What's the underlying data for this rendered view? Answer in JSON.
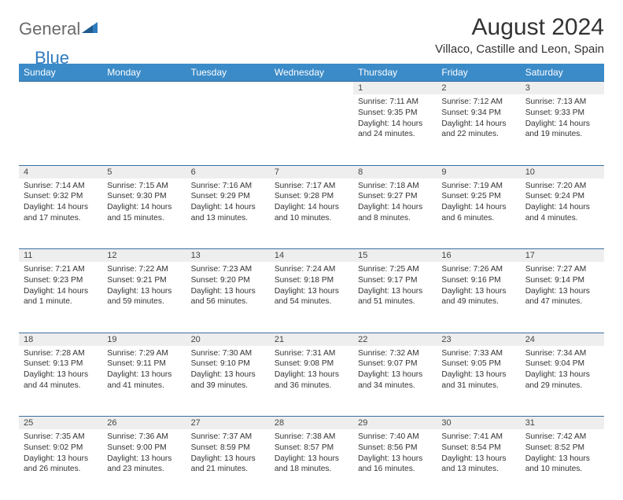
{
  "logo": {
    "word1": "General",
    "word2": "Blue"
  },
  "title": "August 2024",
  "location": "Villaco, Castille and Leon, Spain",
  "colors": {
    "header_bg": "#3b8bc8",
    "header_text": "#ffffff",
    "daynum_bg": "#eeeeee",
    "rule": "#3b6fa0",
    "body_text": "#333333",
    "logo_gray": "#6a6a6a",
    "logo_blue": "#2f7bbf"
  },
  "weekdays": [
    "Sunday",
    "Monday",
    "Tuesday",
    "Wednesday",
    "Thursday",
    "Friday",
    "Saturday"
  ],
  "weeks": [
    {
      "nums": [
        "",
        "",
        "",
        "",
        "1",
        "2",
        "3"
      ],
      "cells": [
        null,
        null,
        null,
        null,
        {
          "sunrise": "7:11 AM",
          "sunset": "9:35 PM",
          "daylight": "14 hours and 24 minutes."
        },
        {
          "sunrise": "7:12 AM",
          "sunset": "9:34 PM",
          "daylight": "14 hours and 22 minutes."
        },
        {
          "sunrise": "7:13 AM",
          "sunset": "9:33 PM",
          "daylight": "14 hours and 19 minutes."
        }
      ]
    },
    {
      "nums": [
        "4",
        "5",
        "6",
        "7",
        "8",
        "9",
        "10"
      ],
      "cells": [
        {
          "sunrise": "7:14 AM",
          "sunset": "9:32 PM",
          "daylight": "14 hours and 17 minutes."
        },
        {
          "sunrise": "7:15 AM",
          "sunset": "9:30 PM",
          "daylight": "14 hours and 15 minutes."
        },
        {
          "sunrise": "7:16 AM",
          "sunset": "9:29 PM",
          "daylight": "14 hours and 13 minutes."
        },
        {
          "sunrise": "7:17 AM",
          "sunset": "9:28 PM",
          "daylight": "14 hours and 10 minutes."
        },
        {
          "sunrise": "7:18 AM",
          "sunset": "9:27 PM",
          "daylight": "14 hours and 8 minutes."
        },
        {
          "sunrise": "7:19 AM",
          "sunset": "9:25 PM",
          "daylight": "14 hours and 6 minutes."
        },
        {
          "sunrise": "7:20 AM",
          "sunset": "9:24 PM",
          "daylight": "14 hours and 4 minutes."
        }
      ]
    },
    {
      "nums": [
        "11",
        "12",
        "13",
        "14",
        "15",
        "16",
        "17"
      ],
      "cells": [
        {
          "sunrise": "7:21 AM",
          "sunset": "9:23 PM",
          "daylight": "14 hours and 1 minute."
        },
        {
          "sunrise": "7:22 AM",
          "sunset": "9:21 PM",
          "daylight": "13 hours and 59 minutes."
        },
        {
          "sunrise": "7:23 AM",
          "sunset": "9:20 PM",
          "daylight": "13 hours and 56 minutes."
        },
        {
          "sunrise": "7:24 AM",
          "sunset": "9:18 PM",
          "daylight": "13 hours and 54 minutes."
        },
        {
          "sunrise": "7:25 AM",
          "sunset": "9:17 PM",
          "daylight": "13 hours and 51 minutes."
        },
        {
          "sunrise": "7:26 AM",
          "sunset": "9:16 PM",
          "daylight": "13 hours and 49 minutes."
        },
        {
          "sunrise": "7:27 AM",
          "sunset": "9:14 PM",
          "daylight": "13 hours and 47 minutes."
        }
      ]
    },
    {
      "nums": [
        "18",
        "19",
        "20",
        "21",
        "22",
        "23",
        "24"
      ],
      "cells": [
        {
          "sunrise": "7:28 AM",
          "sunset": "9:13 PM",
          "daylight": "13 hours and 44 minutes."
        },
        {
          "sunrise": "7:29 AM",
          "sunset": "9:11 PM",
          "daylight": "13 hours and 41 minutes."
        },
        {
          "sunrise": "7:30 AM",
          "sunset": "9:10 PM",
          "daylight": "13 hours and 39 minutes."
        },
        {
          "sunrise": "7:31 AM",
          "sunset": "9:08 PM",
          "daylight": "13 hours and 36 minutes."
        },
        {
          "sunrise": "7:32 AM",
          "sunset": "9:07 PM",
          "daylight": "13 hours and 34 minutes."
        },
        {
          "sunrise": "7:33 AM",
          "sunset": "9:05 PM",
          "daylight": "13 hours and 31 minutes."
        },
        {
          "sunrise": "7:34 AM",
          "sunset": "9:04 PM",
          "daylight": "13 hours and 29 minutes."
        }
      ]
    },
    {
      "nums": [
        "25",
        "26",
        "27",
        "28",
        "29",
        "30",
        "31"
      ],
      "cells": [
        {
          "sunrise": "7:35 AM",
          "sunset": "9:02 PM",
          "daylight": "13 hours and 26 minutes."
        },
        {
          "sunrise": "7:36 AM",
          "sunset": "9:00 PM",
          "daylight": "13 hours and 23 minutes."
        },
        {
          "sunrise": "7:37 AM",
          "sunset": "8:59 PM",
          "daylight": "13 hours and 21 minutes."
        },
        {
          "sunrise": "7:38 AM",
          "sunset": "8:57 PM",
          "daylight": "13 hours and 18 minutes."
        },
        {
          "sunrise": "7:40 AM",
          "sunset": "8:56 PM",
          "daylight": "13 hours and 16 minutes."
        },
        {
          "sunrise": "7:41 AM",
          "sunset": "8:54 PM",
          "daylight": "13 hours and 13 minutes."
        },
        {
          "sunrise": "7:42 AM",
          "sunset": "8:52 PM",
          "daylight": "13 hours and 10 minutes."
        }
      ]
    }
  ],
  "labels": {
    "sunrise": "Sunrise: ",
    "sunset": "Sunset: ",
    "daylight": "Daylight: "
  }
}
